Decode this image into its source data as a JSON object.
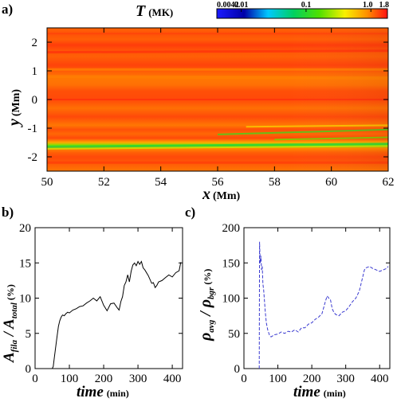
{
  "panels": {
    "a": {
      "label": "a)",
      "title_var": "T",
      "title_unit": "(MK)",
      "xlabel_var": "x",
      "xlabel_unit": "(Mm)",
      "ylabel_var": "y",
      "ylabel_unit": "(Mm)",
      "colorbar_ticks": [
        "0.0042",
        "0.01",
        "0.1",
        "1.0",
        "1.8"
      ]
    },
    "b": {
      "label": "b)",
      "xlabel_var": "time",
      "xlabel_unit": "(min)",
      "ylabel_parts": [
        "A",
        "fila",
        " / A",
        "total",
        " (%)"
      ]
    },
    "c": {
      "label": "c)",
      "xlabel_var": "time",
      "xlabel_unit": "(min)",
      "ylabel_parts": [
        "ρ",
        "avg",
        " / ρ",
        "bgr",
        " (%)"
      ]
    }
  },
  "colors": {
    "line_b": "#000000",
    "line_c": "#3a3ad0"
  },
  "chart_data": [
    {
      "type": "heatmap",
      "title": "T (MK)",
      "xlabel": "x (Mm)",
      "ylabel": "y (Mm)",
      "xlim": [
        50,
        62
      ],
      "ylim": [
        -2.5,
        2.5
      ],
      "x_ticks": [
        50,
        52,
        54,
        56,
        58,
        60,
        62
      ],
      "y_ticks": [
        -2,
        -1,
        0,
        1,
        2
      ],
      "colorbar": {
        "scale": "log",
        "range": [
          0.0042,
          1.8
        ],
        "ticks": [
          0.0042,
          0.01,
          0.1,
          1.0,
          1.8
        ]
      },
      "y_profile": {
        "y": [
          -2.5,
          -2.2,
          -2.0,
          -1.85,
          -1.7,
          -1.6,
          -1.5,
          -1.35,
          -1.2,
          -1.05,
          -0.9,
          -0.6,
          -0.3,
          0.0,
          0.3,
          0.5,
          0.7,
          0.9,
          1.2,
          1.5,
          1.7,
          1.9,
          2.1,
          2.3,
          2.5
        ],
        "T": [
          1.0,
          1.2,
          1.3,
          1.15,
          0.9,
          0.2,
          0.7,
          1.3,
          1.1,
          1.25,
          1.0,
          1.3,
          1.05,
          1.3,
          1.25,
          1.05,
          1.0,
          1.1,
          1.35,
          1.15,
          1.2,
          1.4,
          1.15,
          1.25,
          1.1
        ]
      }
    },
    {
      "type": "line",
      "xlabel": "time (min)",
      "ylabel": "A_fila / A_total (%)",
      "xlim": [
        0,
        430
      ],
      "ylim": [
        0,
        20
      ],
      "x_ticks": [
        0,
        100,
        200,
        300,
        400
      ],
      "y_ticks": [
        0,
        5,
        10,
        15,
        20
      ],
      "series": [
        {
          "x": [
            50,
            53,
            56,
            60,
            64,
            68,
            72,
            76,
            80,
            85,
            90,
            95,
            100,
            110,
            120,
            130,
            140,
            150,
            160,
            170,
            180,
            190,
            200,
            210,
            220,
            230,
            240,
            245,
            250,
            255,
            260,
            265,
            270,
            275,
            280,
            285,
            290,
            295,
            300,
            305,
            310,
            315,
            320,
            330,
            340,
            345,
            350,
            355,
            360,
            370,
            380,
            390,
            400,
            410,
            420,
            425
          ],
          "y": [
            0.0,
            0.3,
            1.5,
            3.0,
            4.5,
            6.0,
            6.8,
            7.3,
            7.6,
            7.5,
            7.8,
            8.0,
            7.9,
            8.3,
            8.5,
            8.8,
            8.9,
            9.3,
            9.6,
            10.0,
            9.6,
            10.2,
            9.0,
            8.2,
            9.2,
            9.3,
            8.6,
            8.3,
            9.5,
            10.2,
            11.8,
            12.3,
            13.3,
            12.3,
            13.8,
            14.7,
            15.0,
            14.6,
            15.2,
            14.8,
            15.2,
            14.3,
            14.0,
            13.2,
            12.1,
            12.2,
            11.5,
            11.8,
            12.3,
            12.5,
            12.9,
            13.3,
            13.0,
            13.6,
            13.9,
            15.1
          ]
        }
      ]
    },
    {
      "type": "line",
      "xlabel": "time (min)",
      "ylabel": "ρ_avg / ρ_bgr (%)",
      "xlim": [
        0,
        430
      ],
      "ylim": [
        0,
        200
      ],
      "x_ticks": [
        0,
        100,
        200,
        300,
        400
      ],
      "y_ticks": [
        0,
        50,
        100,
        150,
        200
      ],
      "line_style": "dashed",
      "series": [
        {
          "x": [
            45,
            46,
            48,
            50,
            52,
            54,
            56,
            58,
            60,
            63,
            66,
            70,
            75,
            80,
            90,
            100,
            110,
            120,
            130,
            140,
            150,
            160,
            170,
            180,
            190,
            200,
            210,
            220,
            230,
            240,
            245,
            250,
            255,
            260,
            265,
            270,
            275,
            280,
            290,
            300,
            310,
            320,
            330,
            340,
            350,
            355,
            360,
            370,
            380,
            390,
            400,
            410,
            420,
            425
          ],
          "y": [
            0,
            180,
            150,
            160,
            140,
            145,
            120,
            112,
            100,
            80,
            65,
            55,
            48,
            45,
            48,
            49,
            52,
            50,
            53,
            52,
            55,
            52,
            58,
            58,
            63,
            65,
            70,
            73,
            78,
            95,
            103,
            100,
            98,
            85,
            80,
            77,
            76,
            75,
            80,
            82,
            88,
            95,
            100,
            110,
            130,
            140,
            143,
            145,
            142,
            140,
            138,
            140,
            142,
            145
          ]
        }
      ]
    }
  ]
}
